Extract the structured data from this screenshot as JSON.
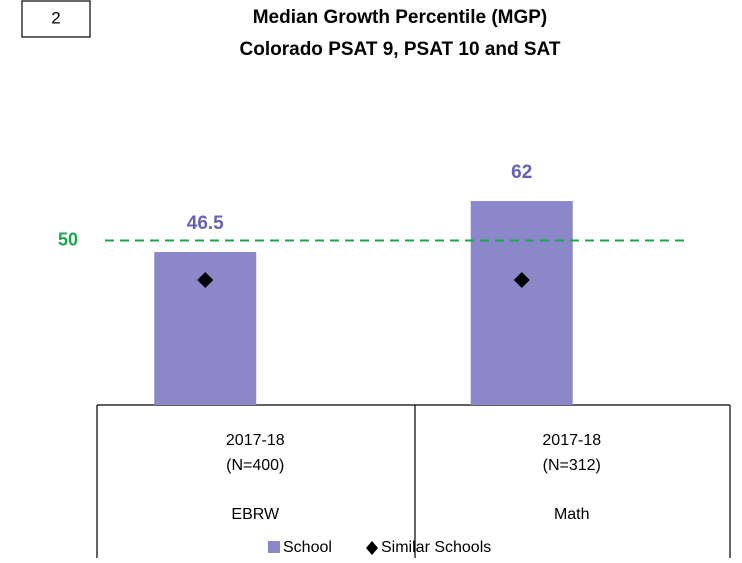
{
  "badge": "2",
  "chart_data": {
    "type": "bar",
    "title": [
      "Median Growth Percentile (MGP)",
      "Colorado PSAT 9, PSAT 10 and SAT"
    ],
    "categories": [
      "EBRW",
      "Math"
    ],
    "periods": [
      "2017-18",
      "2017-18"
    ],
    "counts": [
      "(N=400)",
      "(N=312)"
    ],
    "series": [
      {
        "name": "School",
        "color": "#8a88c9",
        "label_color": "#6661b3",
        "marker": "bar",
        "values": [
          46.5,
          62
        ]
      },
      {
        "name": "Similar Schools",
        "color": "#000000",
        "marker": "diamond",
        "values": [
          38,
          38
        ]
      }
    ],
    "reference_line": {
      "value": 50,
      "color": "#1aa64a"
    }
  }
}
